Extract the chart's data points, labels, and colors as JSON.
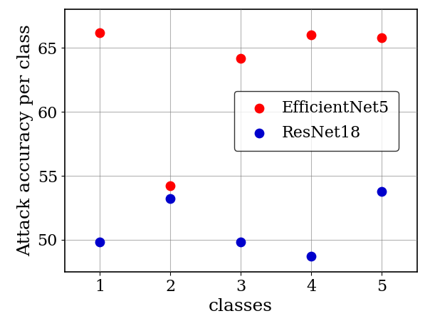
{
  "efficientnet_x": [
    1,
    2,
    3,
    4,
    5
  ],
  "efficientnet_y": [
    66.2,
    54.2,
    64.2,
    66.0,
    65.8
  ],
  "resnet_x": [
    1,
    2,
    3,
    4,
    5
  ],
  "resnet_y": [
    49.8,
    53.2,
    49.8,
    48.7,
    53.8
  ],
  "efficientnet_color": "#ff0000",
  "resnet_color": "#0000cc",
  "marker_size": 80,
  "xlabel": "classes",
  "ylabel": "Attack accuracy per class",
  "xlim": [
    0.5,
    5.5
  ],
  "ylim": [
    47.5,
    68.0
  ],
  "xticks": [
    1,
    2,
    3,
    4,
    5
  ],
  "yticks": [
    50,
    55,
    60,
    65
  ],
  "legend_labels": [
    "EfficientNet5",
    "ResNet18"
  ],
  "grid": true,
  "label_fontsize": 18,
  "tick_fontsize": 16,
  "legend_fontsize": 16
}
